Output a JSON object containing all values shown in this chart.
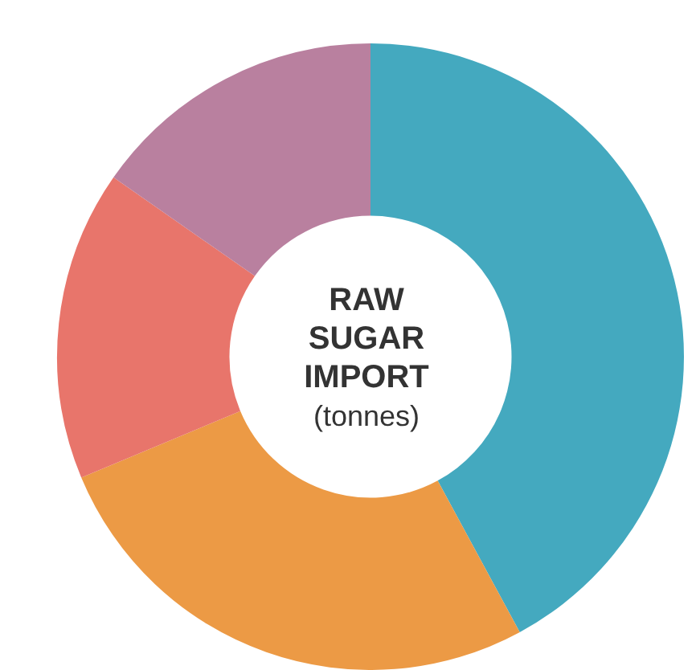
{
  "chart_data": {
    "type": "donut",
    "title": "RAW SUGAR IMPORT",
    "subtitle": "(tonnes)",
    "categories": [
      null,
      null,
      null,
      null
    ],
    "values": [
      42.1,
      26.6,
      16,
      15.3
    ],
    "colors": [
      "#44a9bf",
      "#ec9a45",
      "#e8756b",
      "#b9809f"
    ]
  }
}
